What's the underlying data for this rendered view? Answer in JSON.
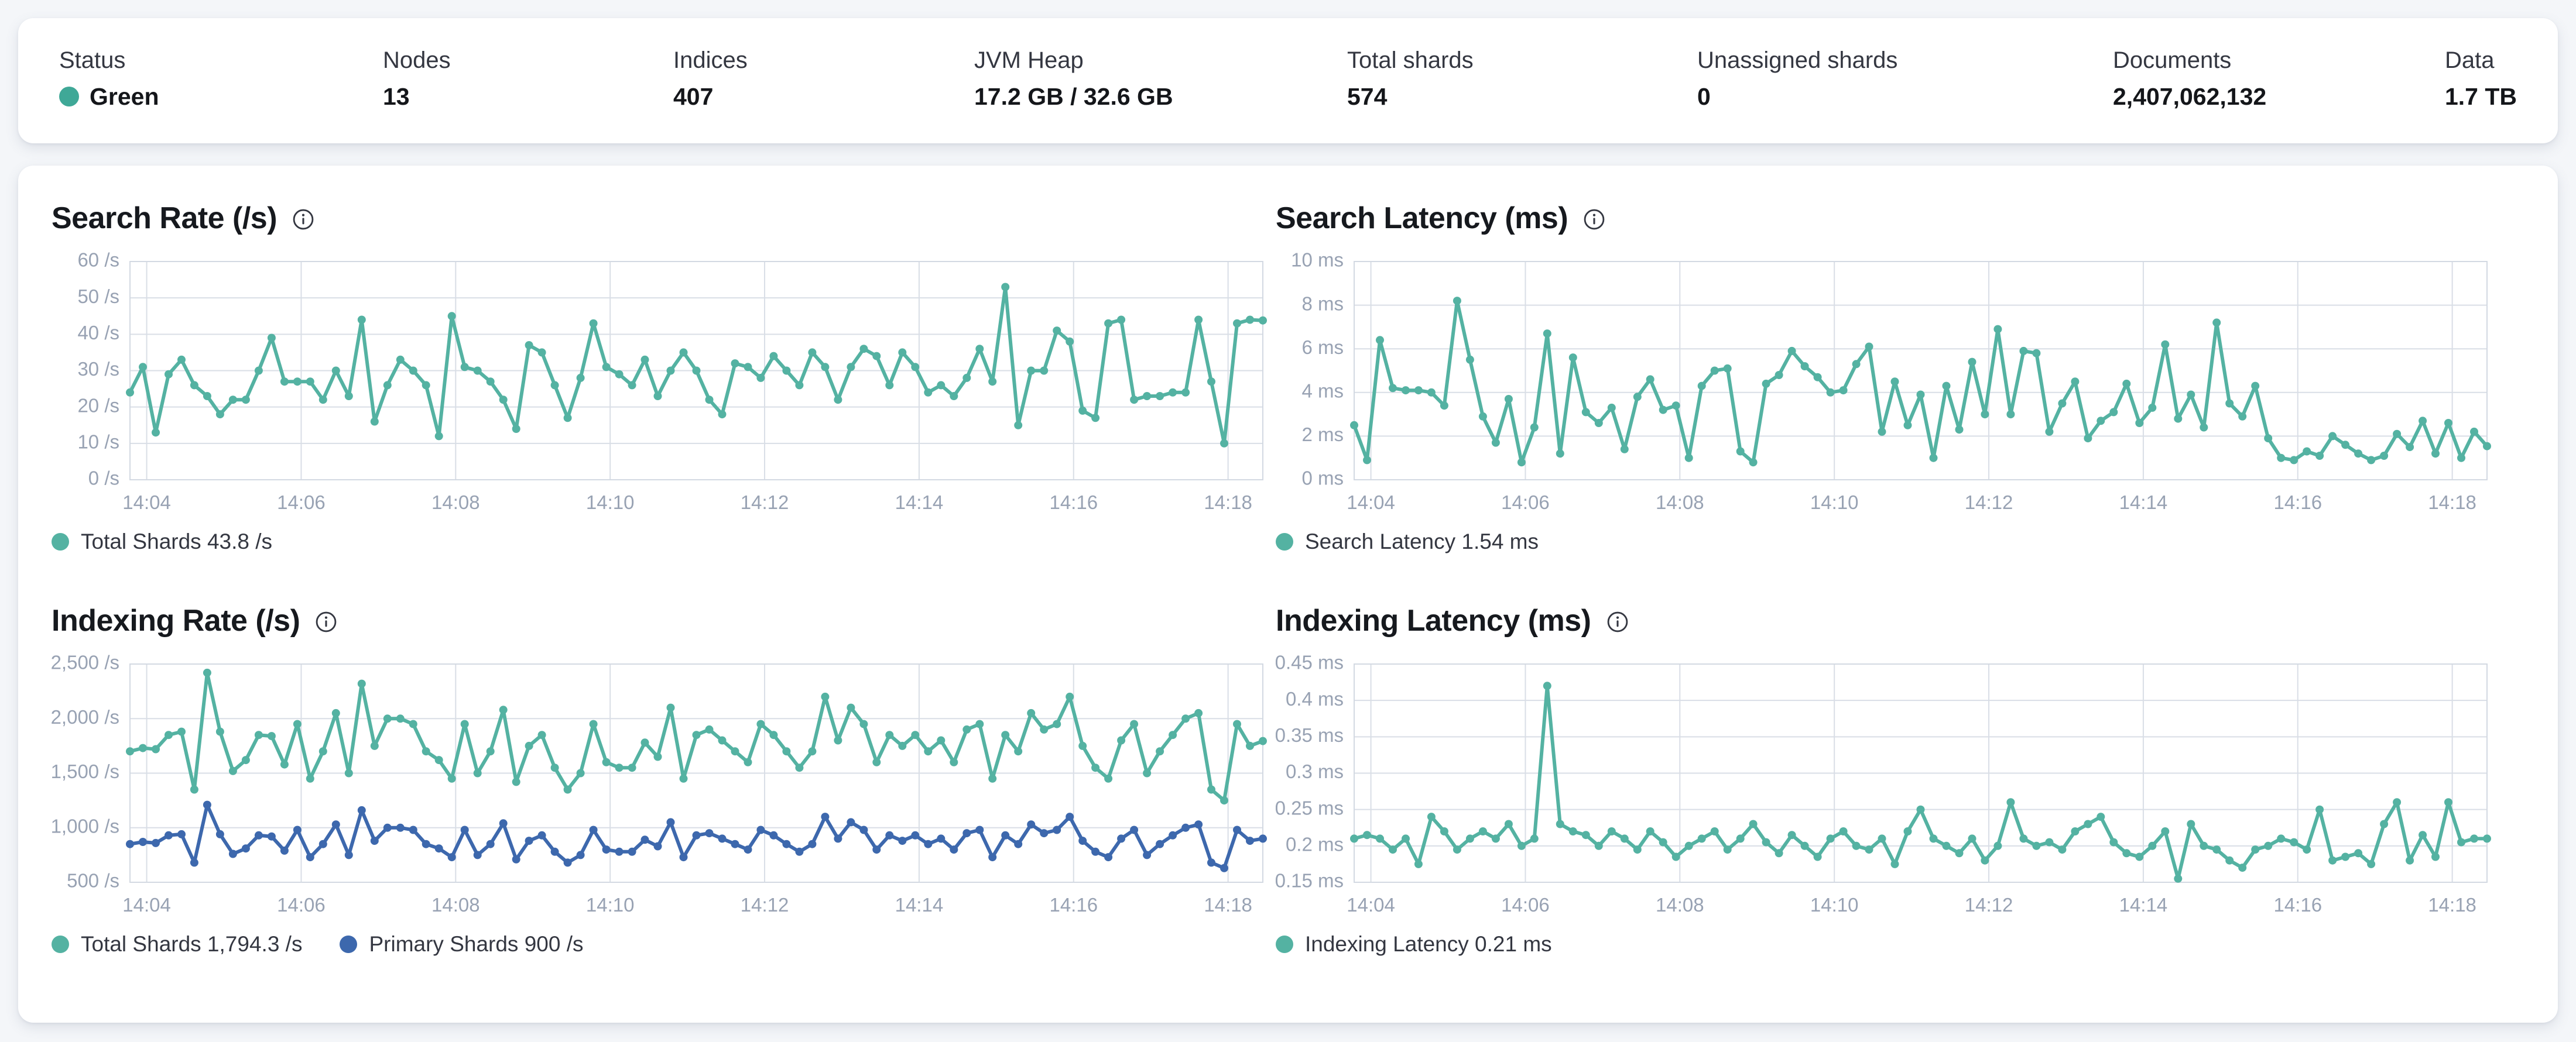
{
  "colors": {
    "status_green": "#3fa897",
    "teal": "#54b2a2",
    "blue": "#3d68ad"
  },
  "header": {
    "stats": [
      {
        "label": "Status",
        "value": "Green"
      },
      {
        "label": "Nodes",
        "value": "13"
      },
      {
        "label": "Indices",
        "value": "407"
      },
      {
        "label": "JVM Heap",
        "value": "17.2 GB / 32.6 GB"
      },
      {
        "label": "Total shards",
        "value": "574"
      },
      {
        "label": "Unassigned shards",
        "value": "0"
      },
      {
        "label": "Documents",
        "value": "2,407,062,132"
      },
      {
        "label": "Data",
        "value": "1.7 TB"
      }
    ]
  },
  "chart_data": [
    {
      "type": "line",
      "title": "Search Rate (/s)",
      "ylim": [
        0,
        60
      ],
      "y_ticks": [
        {
          "v": 0,
          "label": "0 /s"
        },
        {
          "v": 10,
          "label": "10 /s"
        },
        {
          "v": 20,
          "label": "20 /s"
        },
        {
          "v": 30,
          "label": "30 /s"
        },
        {
          "v": 40,
          "label": "40 /s"
        },
        {
          "v": 50,
          "label": "50 /s"
        },
        {
          "v": 60,
          "label": "60 /s"
        }
      ],
      "x_domain": [
        -13,
        867
      ],
      "x_start": -13,
      "x_step": 10,
      "x_ticks": [
        {
          "sec": 0,
          "label": "14:04"
        },
        {
          "sec": 120,
          "label": "14:06"
        },
        {
          "sec": 240,
          "label": "14:08"
        },
        {
          "sec": 360,
          "label": "14:10"
        },
        {
          "sec": 480,
          "label": "14:12"
        },
        {
          "sec": 600,
          "label": "14:14"
        },
        {
          "sec": 720,
          "label": "14:16"
        },
        {
          "sec": 840,
          "label": "14:18"
        }
      ],
      "series": [
        {
          "name": "Total Shards",
          "color": "#54b2a2",
          "values": [
            24,
            31,
            13,
            29,
            33,
            26,
            23,
            18,
            22,
            22,
            30,
            39,
            27,
            27,
            27,
            22,
            30,
            23,
            44,
            16,
            26,
            33,
            30,
            26,
            12,
            45,
            31,
            30,
            27,
            22,
            14,
            37,
            35,
            26,
            17,
            28,
            43,
            31,
            29,
            26,
            33,
            23,
            30,
            35,
            30,
            22,
            18,
            32,
            31,
            28,
            34,
            30,
            26,
            35,
            31,
            22,
            31,
            36,
            34,
            26,
            35,
            31,
            24,
            26,
            23,
            28,
            36,
            27,
            53,
            15,
            30,
            30,
            41,
            38,
            19,
            17,
            43,
            44,
            22,
            23,
            23,
            24,
            24,
            44,
            27,
            10,
            43,
            44,
            43.8
          ]
        }
      ],
      "legend": [
        {
          "label": "Total Shards 43.8 /s",
          "color": "#54b2a2"
        }
      ]
    },
    {
      "type": "line",
      "title": "Search Latency (ms)",
      "ylim": [
        0,
        10
      ],
      "y_ticks": [
        {
          "v": 0,
          "label": "0 ms"
        },
        {
          "v": 2,
          "label": "2 ms"
        },
        {
          "v": 4,
          "label": "4 ms"
        },
        {
          "v": 6,
          "label": "6 ms"
        },
        {
          "v": 8,
          "label": "8 ms"
        },
        {
          "v": 10,
          "label": "10 ms"
        }
      ],
      "x_domain": [
        -13,
        867
      ],
      "x_start": -13,
      "x_step": 10,
      "x_ticks": [
        {
          "sec": 0,
          "label": "14:04"
        },
        {
          "sec": 120,
          "label": "14:06"
        },
        {
          "sec": 240,
          "label": "14:08"
        },
        {
          "sec": 360,
          "label": "14:10"
        },
        {
          "sec": 480,
          "label": "14:12"
        },
        {
          "sec": 600,
          "label": "14:14"
        },
        {
          "sec": 720,
          "label": "14:16"
        },
        {
          "sec": 840,
          "label": "14:18"
        }
      ],
      "series": [
        {
          "name": "Search Latency",
          "color": "#54b2a2",
          "values": [
            2.5,
            0.9,
            6.4,
            4.2,
            4.1,
            4.1,
            4.0,
            3.4,
            8.2,
            5.5,
            2.9,
            1.7,
            3.7,
            0.8,
            2.4,
            6.7,
            1.2,
            5.6,
            3.1,
            2.6,
            3.3,
            1.4,
            3.8,
            4.6,
            3.2,
            3.4,
            1.0,
            4.3,
            5.0,
            5.1,
            1.3,
            0.8,
            4.4,
            4.8,
            5.9,
            5.2,
            4.7,
            4.0,
            4.1,
            5.3,
            6.1,
            2.2,
            4.5,
            2.5,
            3.9,
            1.0,
            4.3,
            2.3,
            5.4,
            3.0,
            6.9,
            3.0,
            5.9,
            5.8,
            2.2,
            3.5,
            4.5,
            1.9,
            2.7,
            3.1,
            4.4,
            2.6,
            3.3,
            6.2,
            2.8,
            3.9,
            2.4,
            7.2,
            3.5,
            2.9,
            4.3,
            1.9,
            1.0,
            0.9,
            1.3,
            1.1,
            2.0,
            1.6,
            1.2,
            0.9,
            1.1,
            2.1,
            1.5,
            2.7,
            1.2,
            2.6,
            1.0,
            2.2,
            1.54
          ]
        }
      ],
      "legend": [
        {
          "label": "Search Latency 1.54 ms",
          "color": "#54b2a2"
        }
      ]
    },
    {
      "type": "line",
      "title": "Indexing Rate (/s)",
      "ylim": [
        500,
        2500
      ],
      "y_ticks": [
        {
          "v": 500,
          "label": "500 /s"
        },
        {
          "v": 1000,
          "label": "1,000 /s"
        },
        {
          "v": 1500,
          "label": "1,500 /s"
        },
        {
          "v": 2000,
          "label": "2,000 /s"
        },
        {
          "v": 2500,
          "label": "2,500 /s"
        }
      ],
      "x_domain": [
        -13,
        867
      ],
      "x_start": -13,
      "x_step": 10,
      "x_ticks": [
        {
          "sec": 0,
          "label": "14:04"
        },
        {
          "sec": 120,
          "label": "14:06"
        },
        {
          "sec": 240,
          "label": "14:08"
        },
        {
          "sec": 360,
          "label": "14:10"
        },
        {
          "sec": 480,
          "label": "14:12"
        },
        {
          "sec": 600,
          "label": "14:14"
        },
        {
          "sec": 720,
          "label": "14:16"
        },
        {
          "sec": 840,
          "label": "14:18"
        }
      ],
      "series": [
        {
          "name": "Total Shards",
          "color": "#54b2a2",
          "values": [
            1700,
            1730,
            1720,
            1850,
            1880,
            1350,
            2420,
            1880,
            1520,
            1620,
            1850,
            1840,
            1580,
            1950,
            1450,
            1700,
            2050,
            1500,
            2320,
            1750,
            2000,
            2000,
            1950,
            1700,
            1620,
            1450,
            1950,
            1500,
            1700,
            2080,
            1420,
            1750,
            1850,
            1550,
            1350,
            1500,
            1950,
            1600,
            1550,
            1550,
            1780,
            1650,
            2100,
            1450,
            1850,
            1900,
            1800,
            1700,
            1600,
            1950,
            1850,
            1700,
            1550,
            1700,
            2200,
            1800,
            2100,
            1950,
            1600,
            1850,
            1750,
            1850,
            1700,
            1800,
            1600,
            1900,
            1950,
            1450,
            1850,
            1700,
            2050,
            1900,
            1950,
            2200,
            1750,
            1550,
            1450,
            1800,
            1950,
            1500,
            1700,
            1850,
            2000,
            2050,
            1350,
            1250,
            1950,
            1750,
            1794.3
          ]
        },
        {
          "name": "Primary Shards",
          "color": "#3d68ad",
          "values": [
            850,
            870,
            860,
            930,
            940,
            680,
            1210,
            940,
            760,
            810,
            930,
            920,
            790,
            980,
            730,
            850,
            1030,
            750,
            1160,
            880,
            1000,
            1000,
            980,
            850,
            810,
            730,
            980,
            750,
            850,
            1040,
            710,
            880,
            930,
            780,
            680,
            750,
            980,
            800,
            780,
            780,
            890,
            830,
            1050,
            730,
            930,
            950,
            900,
            850,
            800,
            980,
            930,
            850,
            780,
            850,
            1100,
            900,
            1050,
            980,
            800,
            930,
            880,
            930,
            850,
            900,
            800,
            950,
            980,
            730,
            930,
            850,
            1030,
            950,
            980,
            1100,
            880,
            780,
            730,
            900,
            980,
            750,
            850,
            930,
            1000,
            1030,
            680,
            630,
            980,
            880,
            900
          ]
        }
      ],
      "legend": [
        {
          "label": "Total Shards 1,794.3 /s",
          "color": "#54b2a2"
        },
        {
          "label": "Primary Shards 900 /s",
          "color": "#3d68ad"
        }
      ]
    },
    {
      "type": "line",
      "title": "Indexing Latency (ms)",
      "ylim": [
        0.15,
        0.45
      ],
      "y_ticks": [
        {
          "v": 0.15,
          "label": "0.15 ms"
        },
        {
          "v": 0.2,
          "label": "0.2 ms"
        },
        {
          "v": 0.25,
          "label": "0.25 ms"
        },
        {
          "v": 0.3,
          "label": "0.3 ms"
        },
        {
          "v": 0.35,
          "label": "0.35 ms"
        },
        {
          "v": 0.4,
          "label": "0.4 ms"
        },
        {
          "v": 0.45,
          "label": "0.45 ms"
        }
      ],
      "x_domain": [
        -13,
        867
      ],
      "x_start": -13,
      "x_step": 10,
      "x_ticks": [
        {
          "sec": 0,
          "label": "14:04"
        },
        {
          "sec": 120,
          "label": "14:06"
        },
        {
          "sec": 240,
          "label": "14:08"
        },
        {
          "sec": 360,
          "label": "14:10"
        },
        {
          "sec": 480,
          "label": "14:12"
        },
        {
          "sec": 600,
          "label": "14:14"
        },
        {
          "sec": 720,
          "label": "14:16"
        },
        {
          "sec": 840,
          "label": "14:18"
        }
      ],
      "series": [
        {
          "name": "Indexing Latency",
          "color": "#54b2a2",
          "values": [
            0.21,
            0.215,
            0.21,
            0.195,
            0.21,
            0.175,
            0.24,
            0.22,
            0.195,
            0.21,
            0.22,
            0.21,
            0.23,
            0.2,
            0.21,
            0.42,
            0.23,
            0.22,
            0.215,
            0.2,
            0.22,
            0.21,
            0.195,
            0.22,
            0.205,
            0.185,
            0.2,
            0.21,
            0.22,
            0.195,
            0.21,
            0.23,
            0.205,
            0.19,
            0.215,
            0.2,
            0.185,
            0.21,
            0.22,
            0.2,
            0.195,
            0.21,
            0.175,
            0.22,
            0.25,
            0.21,
            0.2,
            0.19,
            0.21,
            0.18,
            0.2,
            0.26,
            0.21,
            0.2,
            0.205,
            0.195,
            0.22,
            0.23,
            0.24,
            0.205,
            0.19,
            0.185,
            0.2,
            0.22,
            0.155,
            0.23,
            0.2,
            0.195,
            0.18,
            0.17,
            0.195,
            0.2,
            0.21,
            0.205,
            0.195,
            0.25,
            0.18,
            0.185,
            0.19,
            0.175,
            0.23,
            0.26,
            0.18,
            0.215,
            0.185,
            0.26,
            0.205,
            0.21,
            0.21
          ]
        }
      ],
      "legend": [
        {
          "label": "Indexing Latency 0.21 ms",
          "color": "#54b2a2"
        }
      ]
    }
  ]
}
